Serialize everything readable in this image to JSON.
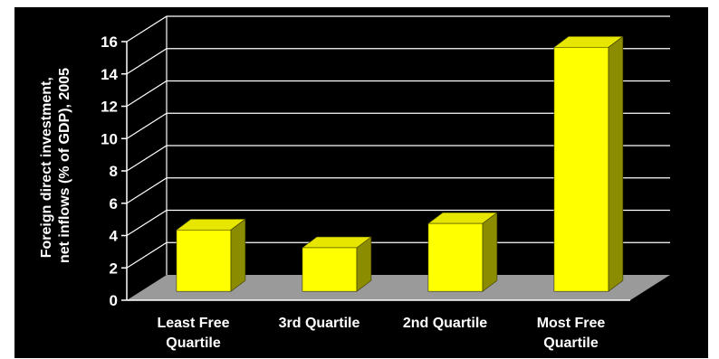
{
  "chart_data": {
    "type": "bar",
    "title": "",
    "xlabel": "",
    "ylabel_lines": [
      "Foreign direct investment,",
      "net inflows (% of GDP), 2005"
    ],
    "categories": [
      [
        "Least Free",
        "Quartile"
      ],
      [
        "3rd Quartile"
      ],
      [
        "2nd Quartile"
      ],
      [
        "Most Free",
        "Quartile"
      ]
    ],
    "values": [
      3.8,
      2.7,
      4.2,
      15.1
    ],
    "ylim": [
      0,
      16
    ],
    "yticks": [
      "0",
      "2",
      "4",
      "6",
      "8",
      "10",
      "12",
      "14",
      "16"
    ],
    "grid": true,
    "style": "3d",
    "colors": {
      "background": "#000000",
      "grid": "#ffffff",
      "floor": "#9a9a9a",
      "bar_front": "#ffff00",
      "bar_top": "#e6e600",
      "bar_side": "#8c8c00"
    }
  }
}
